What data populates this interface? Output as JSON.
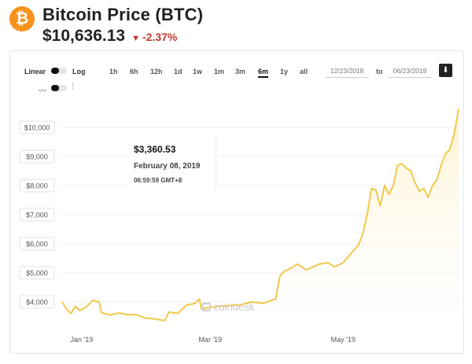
{
  "header": {
    "logo_text": "₿",
    "title": "Bitcoin Price (BTC)",
    "price": "$10,636.13",
    "change_arrow": "▼",
    "change": "-2.37%",
    "change_color": "#c0392b",
    "accent": "#f7931a"
  },
  "controls": {
    "linear_label": "Linear",
    "log_label": "Log",
    "ranges": [
      "1h",
      "6h",
      "12h",
      "1d",
      "1w",
      "1m",
      "3m",
      "6m",
      "1y",
      "all"
    ],
    "active_range": "6m",
    "date_from": "12/23/2018",
    "to_label": "to",
    "date_to": "06/23/2019",
    "download_icon": "download-icon",
    "line_icon": "line-chart-icon",
    "candle_icon": "candlestick-icon"
  },
  "tooltip": {
    "price": "$3,360.53",
    "date": "February 08, 2019",
    "time": "06:59:59 GMT+8"
  },
  "watermark": "coindesk",
  "chart_data": {
    "type": "area",
    "title": "",
    "xlabel": "",
    "ylabel": "",
    "line_color": "#f2c84b",
    "fill_color": "#fdf1cf",
    "grid": true,
    "x_tick_labels": [
      {
        "date": "2019-01-01",
        "label": "Jan '19"
      },
      {
        "date": "2019-03-01",
        "label": "Mar '19"
      },
      {
        "date": "2019-05-01",
        "label": "May '19"
      }
    ],
    "y_ticks": [
      4000,
      5000,
      6000,
      7000,
      8000,
      9000,
      10000
    ],
    "y_tick_labels": [
      "$4,000",
      "$5,000",
      "$6,000",
      "$7,000",
      "$8,000",
      "$9,000",
      "$10,000"
    ],
    "ylim": [
      3000,
      11000
    ],
    "xlim": [
      "2018-12-23",
      "2019-06-23"
    ],
    "series": [
      {
        "points": [
          [
            "2018-12-23",
            4000
          ],
          [
            "2018-12-25",
            3750
          ],
          [
            "2018-12-27",
            3600
          ],
          [
            "2018-12-29",
            3850
          ],
          [
            "2018-12-31",
            3700
          ],
          [
            "2019-01-03",
            3820
          ],
          [
            "2019-01-06",
            4050
          ],
          [
            "2019-01-09",
            4000
          ],
          [
            "2019-01-10",
            3630
          ],
          [
            "2019-01-14",
            3550
          ],
          [
            "2019-01-18",
            3620
          ],
          [
            "2019-01-22",
            3560
          ],
          [
            "2019-01-26",
            3560
          ],
          [
            "2019-01-30",
            3450
          ],
          [
            "2019-02-03",
            3420
          ],
          [
            "2019-02-06",
            3380
          ],
          [
            "2019-02-08",
            3360
          ],
          [
            "2019-02-10",
            3650
          ],
          [
            "2019-02-14",
            3600
          ],
          [
            "2019-02-18",
            3880
          ],
          [
            "2019-02-22",
            3950
          ],
          [
            "2019-02-24",
            4100
          ],
          [
            "2019-02-25",
            3750
          ],
          [
            "2019-02-28",
            3800
          ],
          [
            "2019-03-05",
            3850
          ],
          [
            "2019-03-10",
            3880
          ],
          [
            "2019-03-15",
            3900
          ],
          [
            "2019-03-20",
            4000
          ],
          [
            "2019-03-25",
            3950
          ],
          [
            "2019-03-31",
            4100
          ],
          [
            "2019-04-02",
            4900
          ],
          [
            "2019-04-04",
            5050
          ],
          [
            "2019-04-08",
            5200
          ],
          [
            "2019-04-10",
            5300
          ],
          [
            "2019-04-14",
            5100
          ],
          [
            "2019-04-20",
            5300
          ],
          [
            "2019-04-24",
            5350
          ],
          [
            "2019-04-27",
            5200
          ],
          [
            "2019-05-01",
            5350
          ],
          [
            "2019-05-05",
            5700
          ],
          [
            "2019-05-08",
            5950
          ],
          [
            "2019-05-10",
            6350
          ],
          [
            "2019-05-12",
            7000
          ],
          [
            "2019-05-14",
            7900
          ],
          [
            "2019-05-16",
            7850
          ],
          [
            "2019-05-18",
            7300
          ],
          [
            "2019-05-20",
            8000
          ],
          [
            "2019-05-22",
            7700
          ],
          [
            "2019-05-24",
            8000
          ],
          [
            "2019-05-26",
            8700
          ],
          [
            "2019-05-28",
            8750
          ],
          [
            "2019-05-30",
            8600
          ],
          [
            "2019-06-01",
            8500
          ],
          [
            "2019-06-03",
            8100
          ],
          [
            "2019-06-05",
            7800
          ],
          [
            "2019-06-07",
            7900
          ],
          [
            "2019-06-09",
            7600
          ],
          [
            "2019-06-11",
            8000
          ],
          [
            "2019-06-13",
            8200
          ],
          [
            "2019-06-15",
            8700
          ],
          [
            "2019-06-17",
            9100
          ],
          [
            "2019-06-19",
            9250
          ],
          [
            "2019-06-21",
            9800
          ],
          [
            "2019-06-23",
            10636
          ]
        ]
      }
    ]
  }
}
